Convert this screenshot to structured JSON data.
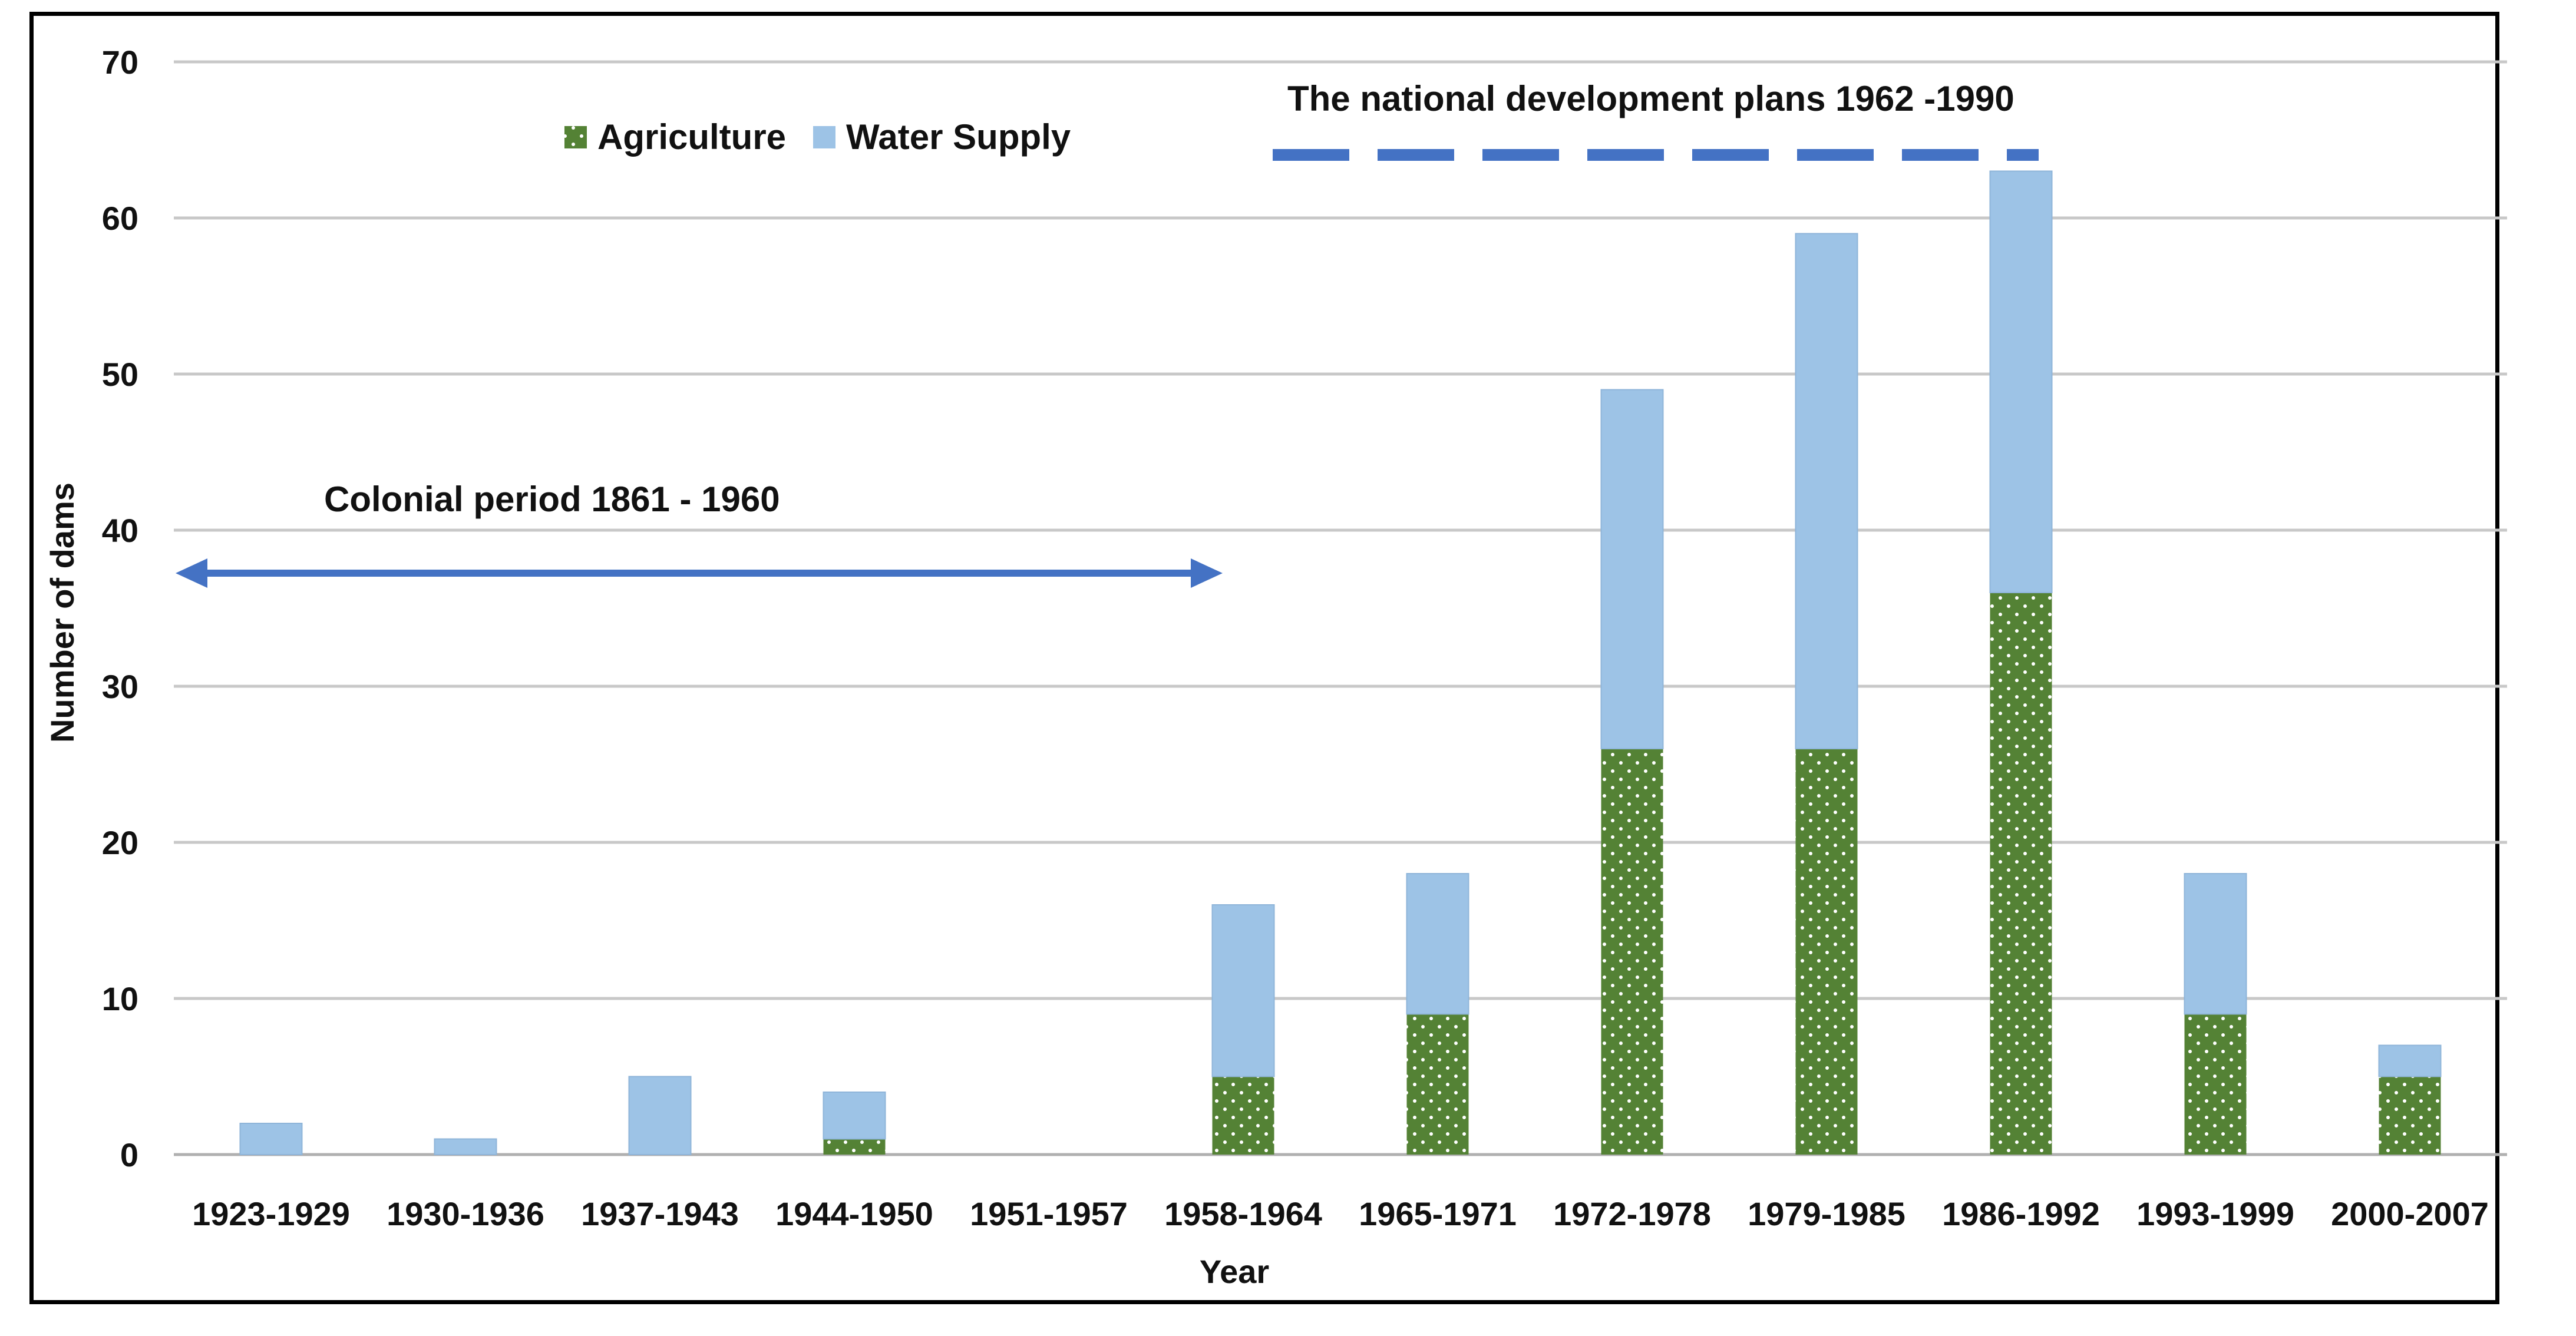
{
  "chart_data": {
    "type": "bar",
    "stacked": true,
    "xlabel": "Year",
    "ylabel": "Number of dams",
    "ylim": [
      0,
      70
    ],
    "yticks": [
      0,
      10,
      20,
      30,
      40,
      50,
      60,
      70
    ],
    "grid": true,
    "legend_position": "top-left",
    "categories": [
      "1923-1929",
      "1930-1936",
      "1937-1943",
      "1944-1950",
      "1951-1957",
      "1958-1964",
      "1965-1971",
      "1972-1978",
      "1979-1985",
      "1986-1992",
      "1993-1999",
      "2000-2007"
    ],
    "series": [
      {
        "name": "Agriculture",
        "color": "#548235",
        "pattern": "dotted",
        "values": [
          0,
          0,
          0,
          1,
          0,
          5,
          9,
          26,
          26,
          36,
          9,
          5
        ]
      },
      {
        "name": "Water Supply",
        "color": "#9DC3E6",
        "values": [
          2,
          1,
          5,
          3,
          0,
          11,
          9,
          23,
          33,
          27,
          9,
          2
        ]
      }
    ],
    "annotations": {
      "colonial": {
        "text": "Colonial period 1861 - 1960",
        "style": "double-arrow"
      },
      "national": {
        "text": "The national development plans 1962 -1990",
        "style": "dashed-line"
      }
    },
    "annotation_color": "#4472C4"
  }
}
